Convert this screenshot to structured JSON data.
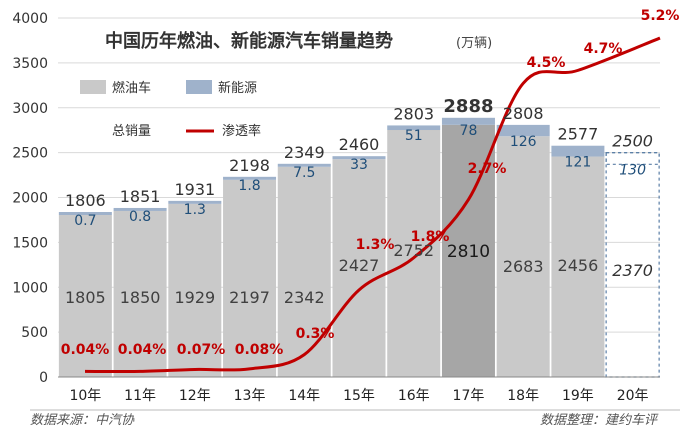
{
  "chart_data": {
    "type": "bar",
    "title": "中国历年燃油、新能源汽车销量趋势",
    "unit": "(万辆)",
    "categories": [
      "10年",
      "11年",
      "12年",
      "13年",
      "14年",
      "15年",
      "16年",
      "17年",
      "18年",
      "19年",
      "20年"
    ],
    "y_ticks": [
      0,
      500,
      1000,
      1500,
      2000,
      2500,
      3000,
      3500,
      4000
    ],
    "ylim": [
      0,
      4000
    ],
    "series": [
      {
        "name": "燃油车",
        "values": [
          1805,
          1850,
          1929,
          2197,
          2342,
          2427,
          2752,
          2810,
          2683,
          2456,
          2370
        ],
        "color": "#c9c9c9"
      },
      {
        "name": "新能源",
        "values": [
          0.7,
          0.8,
          1.3,
          1.8,
          7.5,
          33,
          51,
          78,
          126,
          121,
          130
        ],
        "color": "#9fb2cb"
      }
    ],
    "totals": [
      1806,
      1851,
      1931,
      2198,
      2349,
      2460,
      2803,
      2888,
      2808,
      2577,
      2500
    ],
    "total_label": "总销量",
    "penetration": {
      "name": "渗透率",
      "labels": [
        "0.04%",
        "0.04%",
        "0.07%",
        "0.08%",
        "0.3%",
        "1.3%",
        "1.8%",
        "2.7%",
        "4.5%",
        "4.7%",
        "5.2%"
      ],
      "values": [
        0.04,
        0.04,
        0.07,
        0.08,
        0.3,
        1.3,
        1.8,
        2.7,
        4.5,
        4.7,
        5.2
      ],
      "color": "#c00000"
    },
    "projected_category": "20年",
    "highlight_category": "17年",
    "colors": {
      "fuel": "#c9c9c9",
      "fuel_highlight": "#a6a6a6",
      "nev": "#9fb2cb",
      "line": "#c00000",
      "nev_text": "#1f4e79"
    }
  },
  "footer": {
    "source": "数据来源：中汽协",
    "compiler": "数据整理：建约车评"
  }
}
